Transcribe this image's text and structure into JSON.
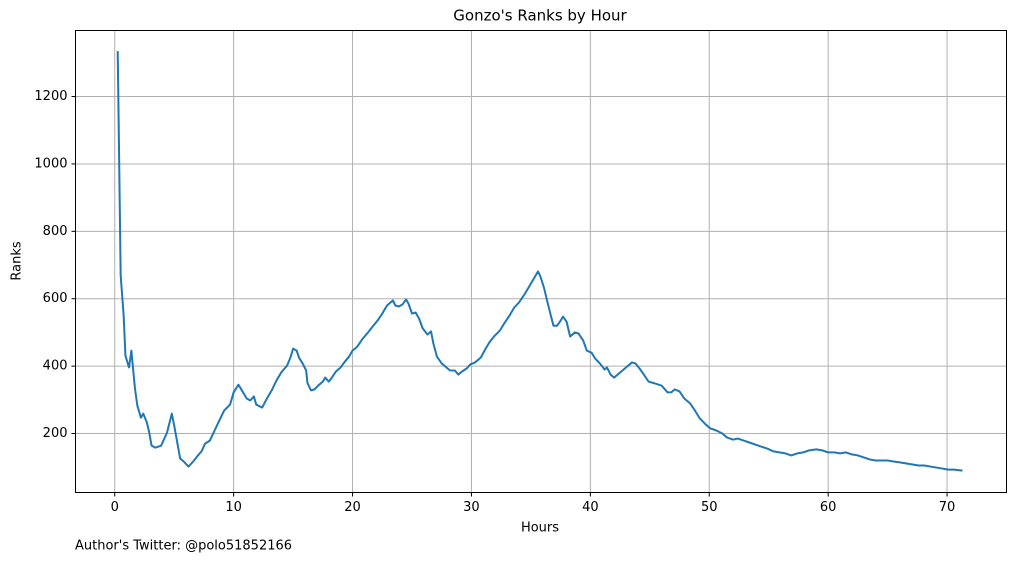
{
  "chart_data": {
    "type": "line",
    "title": "Gonzo's Ranks by Hour",
    "x_label": "Hours",
    "y_label": "Ranks",
    "footnote": "Author's Twitter: @polo51852166",
    "x": [
      0.25,
      0.5,
      0.75,
      0.9,
      1.2,
      1.4,
      1.7,
      1.9,
      2.2,
      2.4,
      2.7,
      2.9,
      3.1,
      3.4,
      3.9,
      4.4,
      4.8,
      5.0,
      5.5,
      5.8,
      6.2,
      6.6,
      7.0,
      7.3,
      7.6,
      8.0,
      8.4,
      8.8,
      9.2,
      9.7,
      10.0,
      10.4,
      10.8,
      11.1,
      11.4,
      11.7,
      11.9,
      12.4,
      12.8,
      13.2,
      13.6,
      14.0,
      14.5,
      14.8,
      15.0,
      15.3,
      15.5,
      15.8,
      16.1,
      16.2,
      16.5,
      16.8,
      17.1,
      17.5,
      17.7,
      18.0,
      18.2,
      18.6,
      19.0,
      19.3,
      19.7,
      20.0,
      20.4,
      20.8,
      21.3,
      21.7,
      22.1,
      22.5,
      22.9,
      23.4,
      23.6,
      23.9,
      24.2,
      24.5,
      24.7,
      25.0,
      25.3,
      25.6,
      25.9,
      26.3,
      26.6,
      26.8,
      27.1,
      27.5,
      27.9,
      28.2,
      28.6,
      28.9,
      29.2,
      29.6,
      29.9,
      30.3,
      30.8,
      31.1,
      31.5,
      31.9,
      32.4,
      32.8,
      33.2,
      33.6,
      34.0,
      34.5,
      34.9,
      35.3,
      35.6,
      35.8,
      36.1,
      36.4,
      36.7,
      36.9,
      37.2,
      37.5,
      37.7,
      38.0,
      38.3,
      38.7,
      39.0,
      39.4,
      39.7,
      40.1,
      40.4,
      40.8,
      41.2,
      41.4,
      41.7,
      42.0,
      42.4,
      42.8,
      43.2,
      43.5,
      43.8,
      44.2,
      44.5,
      44.9,
      45.5,
      46.0,
      46.5,
      46.8,
      47.1,
      47.5,
      47.9,
      48.4,
      48.8,
      49.2,
      49.7,
      50.1,
      50.6,
      51.1,
      51.5,
      52.0,
      52.4,
      52.9,
      53.4,
      53.9,
      54.4,
      54.9,
      55.4,
      55.9,
      56.4,
      56.9,
      57.4,
      57.9,
      58.4,
      59.0,
      59.5,
      60.0,
      60.5,
      61.0,
      61.5,
      62.0,
      62.5,
      63.0,
      63.5,
      64.0,
      64.5,
      65.0,
      65.5,
      66.1,
      66.6,
      67.1,
      67.6,
      68.1,
      68.6,
      69.1,
      69.6,
      70.1,
      70.6,
      71.3
    ],
    "series": [
      {
        "name": "Ranks",
        "color": "#1f77b4",
        "values": [
          1335,
          669,
          550,
          431,
          396,
          446,
          334,
          283,
          247,
          259,
          233,
          203,
          164,
          158,
          164,
          203,
          259,
          224,
          126,
          117,
          102,
          117,
          135,
          147,
          170,
          179,
          209,
          239,
          268,
          286,
          322,
          345,
          322,
          304,
          298,
          310,
          286,
          277,
          304,
          328,
          357,
          381,
          402,
          428,
          452,
          446,
          425,
          408,
          387,
          351,
          328,
          331,
          342,
          354,
          366,
          354,
          363,
          384,
          396,
          411,
          428,
          446,
          458,
          479,
          500,
          518,
          535,
          556,
          580,
          595,
          580,
          577,
          583,
          598,
          586,
          556,
          559,
          541,
          512,
          494,
          503,
          467,
          428,
          408,
          396,
          387,
          387,
          375,
          384,
          393,
          405,
          411,
          426,
          446,
          470,
          488,
          506,
          529,
          550,
          574,
          589,
          615,
          639,
          663,
          681,
          666,
          633,
          589,
          547,
          520,
          520,
          535,
          547,
          532,
          488,
          500,
          497,
          476,
          446,
          440,
          423,
          408,
          390,
          396,
          375,
          366,
          378,
          390,
          402,
          411,
          408,
          390,
          375,
          354,
          348,
          342,
          322,
          322,
          331,
          325,
          304,
          289,
          268,
          245,
          227,
          215,
          209,
          200,
          188,
          182,
          185,
          179,
          173,
          167,
          161,
          155,
          147,
          144,
          141,
          135,
          141,
          144,
          150,
          153,
          150,
          144,
          144,
          141,
          144,
          138,
          135,
          129,
          123,
          120,
          120,
          120,
          117,
          114,
          111,
          108,
          105,
          105,
          102,
          99,
          96,
          93,
          93,
          90
        ]
      }
    ],
    "xlim": [
      -3.3,
      75
    ],
    "xticks": [
      0,
      10,
      20,
      30,
      40,
      50,
      60,
      70
    ],
    "ylim": [
      25,
      1396
    ],
    "yticks": [
      200,
      400,
      600,
      800,
      1000,
      1200
    ],
    "grid": true
  }
}
